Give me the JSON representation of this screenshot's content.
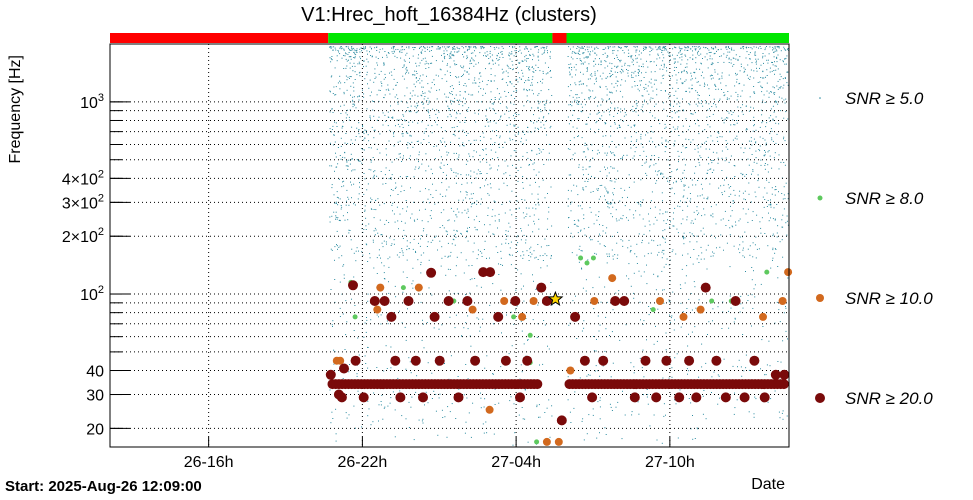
{
  "chart_data": {
    "type": "scatter",
    "title": "V1:Hrec_hoft_16384Hz (clusters)",
    "xlabel": "Date",
    "ylabel": "Frequency [Hz]",
    "yscale": "log",
    "ylim": [
      16,
      2000
    ],
    "xlim": [
      "2025-08-26 12:09:00",
      "2025-08-27 14:39:00"
    ],
    "start_label": "Start: 2025-Aug-26 12:09:00",
    "grid": true,
    "legend_position": "right",
    "x_ticks": [
      {
        "label": "26-16h",
        "value": "2025-08-26 16:00"
      },
      {
        "label": "26-22h",
        "value": "2025-08-26 22:00"
      },
      {
        "label": "27-04h",
        "value": "2025-08-27 04:00"
      },
      {
        "label": "27-10h",
        "value": "2025-08-27 10:00"
      }
    ],
    "y_ticks": [
      {
        "label": "20",
        "value": 20
      },
      {
        "label": "30",
        "value": 30
      },
      {
        "label": "40",
        "value": 40
      },
      {
        "label": "10",
        "sup": "2",
        "value": 100
      },
      {
        "label": "2×10",
        "sup": "2",
        "value": 200
      },
      {
        "label": "3×10",
        "sup": "2",
        "value": 300
      },
      {
        "label": "4×10",
        "sup": "2",
        "value": 400
      },
      {
        "label": "10",
        "sup": "3",
        "value": 1000
      }
    ],
    "state_segments": [
      {
        "start": "2025-08-26 12:09",
        "end": "2025-08-26 20:40",
        "state": "off",
        "color": "#ff0000"
      },
      {
        "start": "2025-08-26 20:40",
        "end": "2025-08-27 05:25",
        "state": "on",
        "color": "#00e600"
      },
      {
        "start": "2025-08-27 05:25",
        "end": "2025-08-27 05:58",
        "state": "off",
        "color": "#ff0000"
      },
      {
        "start": "2025-08-27 05:58",
        "end": "2025-08-27 14:39",
        "state": "on",
        "color": "#00e600"
      }
    ],
    "legend": [
      {
        "label": "SNR ≥ 5.0",
        "color": "#2a8aa0",
        "marker": "dot"
      },
      {
        "label": "SNR ≥ 8.0",
        "color": "#5ec95e",
        "marker": "small-circle"
      },
      {
        "label": "SNR ≥ 10.0",
        "color": "#d2691e",
        "marker": "circle"
      },
      {
        "label": "SNR ≥ 20.0",
        "color": "#7a0a0a",
        "marker": "large-circle"
      }
    ],
    "series": [
      {
        "name": "SNR ≥ 8.0",
        "points": [
          [
            "2025-08-26 21:33",
            115
          ],
          [
            "2025-08-26 21:43",
            76
          ],
          [
            "2025-08-26 23:36",
            108
          ],
          [
            "2025-08-27 01:34",
            92
          ],
          [
            "2025-08-27 03:54",
            76
          ],
          [
            "2025-08-27 04:33",
            61
          ],
          [
            "2025-08-27 04:33",
            44
          ],
          [
            "2025-08-27 04:48",
            17
          ],
          [
            "2025-08-27 05:24",
            92
          ],
          [
            "2025-08-27 06:31",
            154
          ],
          [
            "2025-08-27 06:46",
            145
          ],
          [
            "2025-08-27 07:01",
            154
          ],
          [
            "2025-08-27 09:21",
            83
          ],
          [
            "2025-08-27 11:38",
            92
          ],
          [
            "2025-08-27 12:24",
            92
          ],
          [
            "2025-08-27 13:47",
            130
          ]
        ]
      },
      {
        "name": "SNR ≥ 10.0",
        "points": [
          [
            "2025-08-26 21:00",
            45
          ],
          [
            "2025-08-26 21:08",
            45
          ],
          [
            "2025-08-26 22:35",
            83
          ],
          [
            "2025-08-26 22:42",
            108
          ],
          [
            "2025-08-27 00:12",
            108
          ],
          [
            "2025-08-27 02:18",
            83
          ],
          [
            "2025-08-27 02:58",
            25
          ],
          [
            "2025-08-27 03:32",
            92
          ],
          [
            "2025-08-27 04:14",
            76
          ],
          [
            "2025-08-27 04:41",
            92
          ],
          [
            "2025-08-27 05:12",
            17
          ],
          [
            "2025-08-27 05:40",
            17
          ],
          [
            "2025-08-27 06:07",
            40
          ],
          [
            "2025-08-27 07:03",
            92
          ],
          [
            "2025-08-27 07:45",
            121
          ],
          [
            "2025-08-27 09:37",
            92
          ],
          [
            "2025-08-27 10:32",
            76
          ],
          [
            "2025-08-27 11:12",
            83
          ],
          [
            "2025-08-27 13:38",
            76
          ],
          [
            "2025-08-27 14:24",
            92
          ],
          [
            "2025-08-27 14:37",
            130
          ]
        ]
      },
      {
        "name": "SNR ≥ 20.0",
        "points": [
          [
            "2025-08-26 20:46",
            38
          ],
          [
            "2025-08-26 21:05",
            30
          ],
          [
            "2025-08-26 21:12",
            29
          ],
          [
            "2025-08-26 21:17",
            41
          ],
          [
            "2025-08-26 21:38",
            111
          ],
          [
            "2025-08-26 21:44",
            45
          ],
          [
            "2025-08-26 22:03",
            29
          ],
          [
            "2025-08-26 22:29",
            92
          ],
          [
            "2025-08-26 22:52",
            92
          ],
          [
            "2025-08-26 23:08",
            76
          ],
          [
            "2025-08-26 23:17",
            45
          ],
          [
            "2025-08-26 23:29",
            29
          ],
          [
            "2025-08-26 23:48",
            92
          ],
          [
            "2025-08-27 00:05",
            45
          ],
          [
            "2025-08-27 00:22",
            29
          ],
          [
            "2025-08-27 00:41",
            129
          ],
          [
            "2025-08-27 00:49",
            76
          ],
          [
            "2025-08-27 01:01",
            45
          ],
          [
            "2025-08-27 01:22",
            92
          ],
          [
            "2025-08-27 01:45",
            29
          ],
          [
            "2025-08-27 02:06",
            92
          ],
          [
            "2025-08-27 02:24",
            45
          ],
          [
            "2025-08-27 02:43",
            130
          ],
          [
            "2025-08-27 02:59",
            130
          ],
          [
            "2025-08-27 03:18",
            76
          ],
          [
            "2025-08-27 03:36",
            45
          ],
          [
            "2025-08-27 03:58",
            92
          ],
          [
            "2025-08-27 04:09",
            29
          ],
          [
            "2025-08-27 04:26",
            45
          ],
          [
            "2025-08-27 04:59",
            108
          ],
          [
            "2025-08-27 05:12",
            92
          ],
          [
            "2025-08-27 05:47",
            22
          ],
          [
            "2025-08-27 06:18",
            76
          ],
          [
            "2025-08-27 06:41",
            45
          ],
          [
            "2025-08-27 06:58",
            29
          ],
          [
            "2025-08-27 07:24",
            45
          ],
          [
            "2025-08-27 07:52",
            92
          ],
          [
            "2025-08-27 08:13",
            92
          ],
          [
            "2025-08-27 08:38",
            29
          ],
          [
            "2025-08-27 09:03",
            45
          ],
          [
            "2025-08-27 09:28",
            29
          ],
          [
            "2025-08-27 09:52",
            45
          ],
          [
            "2025-08-27 10:22",
            29
          ],
          [
            "2025-08-27 10:45",
            45
          ],
          [
            "2025-08-27 11:02",
            29
          ],
          [
            "2025-08-27 11:24",
            108
          ],
          [
            "2025-08-27 11:49",
            45
          ],
          [
            "2025-08-27 12:11",
            29
          ],
          [
            "2025-08-27 12:34",
            92
          ],
          [
            "2025-08-27 12:55",
            29
          ],
          [
            "2025-08-27 13:18",
            45
          ],
          [
            "2025-08-27 13:42",
            29
          ],
          [
            "2025-08-27 14:08",
            38
          ],
          [
            "2025-08-27 14:28",
            38
          ]
        ]
      },
      {
        "name": "SNR ≥ 20.0 (continuous band)",
        "band": [
          {
            "start": "2025-08-26 20:50",
            "end": "2025-08-27 04:50",
            "frequency": 34
          },
          {
            "start": "2025-08-27 06:05",
            "end": "2025-08-27 14:39",
            "frequency": 34
          }
        ]
      },
      {
        "name": "loudest event",
        "marker": "star",
        "color": "#ffd700",
        "points": [
          [
            "2025-08-27 05:32",
            94
          ]
        ]
      }
    ]
  }
}
